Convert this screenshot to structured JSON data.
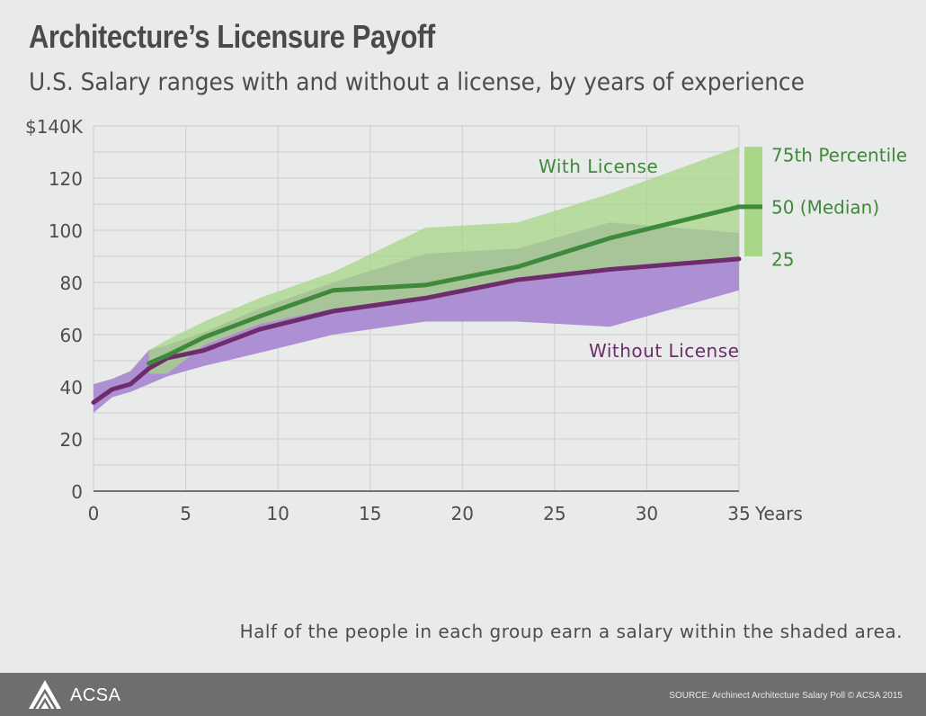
{
  "header": {
    "title": "Architecture’s Licensure Payoff",
    "subtitle": "U.S. Salary ranges with and without a license, by years of experience"
  },
  "chart_data": {
    "type": "area",
    "x_ticks": [
      0,
      5,
      10,
      15,
      20,
      25,
      30,
      35
    ],
    "x_tick_labels": [
      "0",
      "5",
      "10",
      "15",
      "20",
      "25",
      "30",
      "35"
    ],
    "x_unit_label": "Years",
    "y_ticks": [
      0,
      20,
      40,
      60,
      80,
      100,
      120,
      140
    ],
    "y_tick_labels": [
      "0",
      "20",
      "40",
      "60",
      "80",
      "100",
      "120",
      "$140K"
    ],
    "xlim": [
      0,
      35
    ],
    "ylim": [
      0,
      140
    ],
    "grid": true,
    "series": [
      {
        "name": "With License",
        "color": "#3f8a3a",
        "band_color": "#a7d786",
        "x": [
          3,
          4,
          6,
          9,
          13,
          18,
          23,
          28,
          35
        ],
        "p25": [
          45,
          45,
          56,
          64,
          70,
          74,
          80,
          85,
          90
        ],
        "median": [
          49,
          52,
          59,
          67,
          77,
          79,
          86,
          97,
          109
        ],
        "p75": [
          54,
          58,
          65,
          74,
          84,
          101,
          103,
          114,
          132
        ]
      },
      {
        "name": "Without License",
        "color": "#6e2c6c",
        "band_color": "#a98bd2",
        "x": [
          0,
          1,
          2,
          3,
          4,
          6,
          9,
          13,
          18,
          23,
          28,
          35
        ],
        "p25": [
          30,
          36,
          38,
          41,
          44,
          48,
          53,
          60,
          65,
          65,
          63,
          77
        ],
        "median": [
          34,
          39,
          41,
          47,
          51,
          54,
          62,
          69,
          74,
          81,
          85,
          89
        ],
        "p75": [
          41,
          43,
          46,
          54,
          56,
          61,
          70,
          80,
          91,
          93,
          103,
          99
        ]
      }
    ],
    "legend": {
      "p75_label": "75th Percentile",
      "median_label": "50 (Median)",
      "p25_label": "25",
      "placement": "right"
    },
    "annotations": {
      "with_license": "With License",
      "without_license": "Without License"
    }
  },
  "footnote": "Half of the people in each group earn a salary within the shaded area.",
  "footer": {
    "brand": "ACSA",
    "logo_icon": "acsa-triangle-logo-icon",
    "source": "SOURCE: Archinect Architecture Salary Poll   © ACSA 2015"
  }
}
